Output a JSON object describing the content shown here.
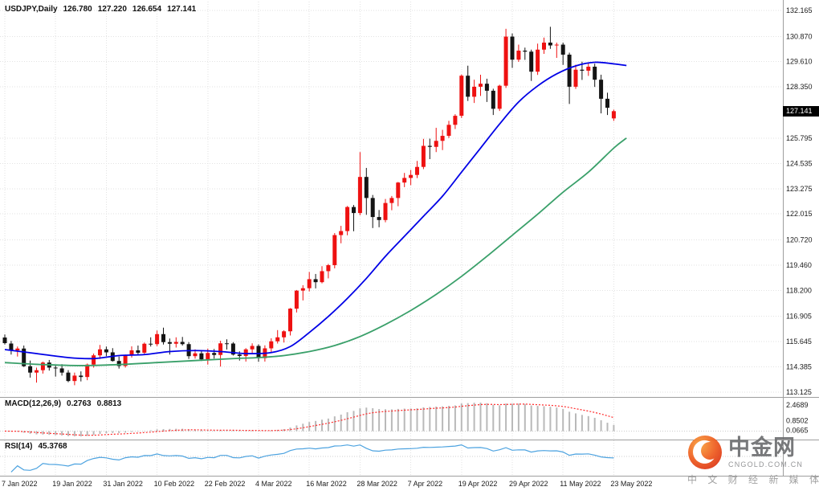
{
  "window": {
    "title_symbol": "USDJPY,Daily",
    "ohlc": {
      "open": "126.780",
      "high": "127.220",
      "low": "126.654",
      "close": "127.141"
    }
  },
  "watermark": {
    "name": "中金网",
    "domain": "CNGOLD.COM.CN",
    "tagline": "中 文 财 经 新 媒 体"
  },
  "chart_data": {
    "type": "candlestick",
    "title": "USDJPY,Daily 126.780 127.220 126.654 127.141",
    "symbol": "USDJPY",
    "timeframe": "Daily",
    "ylim": [
      113.125,
      132.165
    ],
    "grid": true,
    "up_color": "#ee1111",
    "down_color": "#141414",
    "last_price": {
      "value": 127.141,
      "text": "127.141"
    },
    "y_axis_labels": [
      {
        "value": 132.165,
        "text": "132.165"
      },
      {
        "value": 130.87,
        "text": "130.870"
      },
      {
        "value": 129.61,
        "text": "129.610"
      },
      {
        "value": 128.35,
        "text": "128.350"
      },
      {
        "value": 125.795,
        "text": "125.795"
      },
      {
        "value": 124.535,
        "text": "124.535"
      },
      {
        "value": 123.275,
        "text": "123.275"
      },
      {
        "value": 122.015,
        "text": "122.015"
      },
      {
        "value": 120.72,
        "text": "120.720"
      },
      {
        "value": 119.46,
        "text": "119.460"
      },
      {
        "value": 118.2,
        "text": "118.200"
      },
      {
        "value": 116.905,
        "text": "116.905"
      },
      {
        "value": 115.645,
        "text": "115.645"
      },
      {
        "value": 114.385,
        "text": "114.385"
      },
      {
        "value": 113.125,
        "text": "113.125"
      }
    ],
    "x_axis_labels": [
      {
        "index": 0,
        "text": "7 Jan 2022"
      },
      {
        "index": 8,
        "text": "19 Jan 2022"
      },
      {
        "index": 16,
        "text": "31 Jan 2022"
      },
      {
        "index": 24,
        "text": "10 Feb 2022"
      },
      {
        "index": 32,
        "text": "22 Feb 2022"
      },
      {
        "index": 40,
        "text": "4 Mar 2022"
      },
      {
        "index": 48,
        "text": "16 Mar 2022"
      },
      {
        "index": 56,
        "text": "28 Mar 2022"
      },
      {
        "index": 64,
        "text": "7 Apr 2022"
      },
      {
        "index": 72,
        "text": "19 Apr 2022"
      },
      {
        "index": 80,
        "text": "29 Apr 2022"
      },
      {
        "index": 88,
        "text": "11 May 2022"
      },
      {
        "index": 96,
        "text": "23 May 2022"
      }
    ],
    "candles": [
      [
        115.85,
        116.0,
        115.5,
        115.57
      ],
      [
        115.55,
        115.68,
        115.0,
        115.21
      ],
      [
        115.21,
        115.4,
        114.9,
        115.3
      ],
      [
        115.3,
        115.45,
        114.38,
        114.42
      ],
      [
        114.42,
        114.7,
        113.85,
        114.1
      ],
      [
        114.1,
        114.35,
        113.6,
        114.22
      ],
      [
        114.22,
        114.65,
        114.05,
        114.6
      ],
      [
        114.6,
        114.73,
        114.2,
        114.35
      ],
      [
        114.35,
        114.45,
        113.9,
        114.31
      ],
      [
        114.31,
        114.52,
        113.95,
        114.1
      ],
      [
        114.1,
        114.22,
        113.62,
        113.68
      ],
      [
        113.68,
        114.1,
        113.47,
        113.95
      ],
      [
        113.95,
        114.16,
        113.66,
        113.88
      ],
      [
        113.88,
        114.55,
        113.72,
        114.5
      ],
      [
        114.5,
        115.05,
        114.35,
        114.96
      ],
      [
        114.96,
        115.48,
        114.78,
        115.26
      ],
      [
        115.26,
        115.4,
        114.92,
        115.11
      ],
      [
        115.11,
        115.32,
        114.65,
        114.68
      ],
      [
        114.68,
        114.9,
        114.3,
        114.43
      ],
      [
        114.43,
        115.0,
        114.35,
        114.96
      ],
      [
        114.96,
        115.41,
        114.85,
        115.21
      ],
      [
        115.21,
        115.45,
        114.95,
        115.09
      ],
      [
        115.09,
        115.6,
        115.0,
        115.54
      ],
      [
        115.54,
        115.86,
        115.4,
        115.52
      ],
      [
        115.52,
        116.2,
        115.42,
        116.02
      ],
      [
        116.02,
        116.34,
        115.5,
        115.62
      ],
      [
        115.62,
        115.8,
        115.0,
        115.54
      ],
      [
        115.54,
        115.86,
        115.35,
        115.63
      ],
      [
        115.63,
        115.88,
        115.45,
        115.52
      ],
      [
        115.52,
        115.62,
        114.78,
        114.92
      ],
      [
        114.92,
        115.26,
        114.8,
        115.06
      ],
      [
        115.06,
        115.22,
        114.68,
        114.76
      ],
      [
        114.76,
        115.3,
        114.5,
        115.08
      ],
      [
        115.08,
        115.28,
        114.8,
        114.98
      ],
      [
        114.98,
        115.69,
        114.4,
        115.56
      ],
      [
        115.56,
        115.76,
        115.25,
        115.55
      ],
      [
        115.55,
        115.62,
        114.95,
        115.0
      ],
      [
        115.0,
        115.16,
        114.7,
        114.93
      ],
      [
        114.93,
        115.32,
        114.65,
        115.26
      ],
      [
        115.26,
        115.56,
        115.05,
        115.43
      ],
      [
        115.43,
        115.51,
        114.64,
        114.82
      ],
      [
        114.82,
        115.46,
        114.65,
        115.31
      ],
      [
        115.31,
        115.81,
        115.1,
        115.66
      ],
      [
        115.66,
        116.22,
        115.55,
        115.86
      ],
      [
        115.86,
        116.21,
        115.6,
        116.16
      ],
      [
        116.16,
        117.32,
        115.95,
        117.29
      ],
      [
        117.29,
        118.22,
        117.1,
        118.19
      ],
      [
        118.19,
        118.46,
        117.7,
        118.31
      ],
      [
        118.31,
        119.12,
        118.15,
        118.76
      ],
      [
        118.76,
        119.02,
        118.3,
        118.61
      ],
      [
        118.61,
        119.41,
        118.55,
        119.16
      ],
      [
        119.16,
        119.52,
        118.8,
        119.46
      ],
      [
        119.46,
        121.06,
        119.3,
        120.96
      ],
      [
        120.96,
        121.42,
        120.55,
        121.16
      ],
      [
        121.16,
        122.41,
        120.95,
        122.36
      ],
      [
        122.36,
        122.46,
        121.15,
        122.06
      ],
      [
        122.06,
        125.1,
        121.95,
        123.86
      ],
      [
        123.86,
        124.31,
        121.97,
        122.81
      ],
      [
        122.81,
        122.96,
        121.31,
        121.86
      ],
      [
        121.86,
        122.21,
        121.35,
        121.71
      ],
      [
        121.71,
        122.76,
        121.6,
        122.56
      ],
      [
        122.56,
        122.91,
        122.2,
        122.81
      ],
      [
        122.81,
        123.61,
        122.4,
        123.58
      ],
      [
        123.58,
        124.06,
        123.35,
        123.81
      ],
      [
        123.81,
        124.21,
        123.45,
        123.96
      ],
      [
        123.96,
        124.66,
        123.8,
        124.36
      ],
      [
        124.36,
        125.76,
        124.25,
        125.41
      ],
      [
        125.41,
        125.77,
        124.75,
        125.36
      ],
      [
        125.36,
        126.31,
        125.1,
        125.66
      ],
      [
        125.66,
        126.21,
        125.2,
        125.91
      ],
      [
        125.91,
        126.66,
        125.8,
        126.46
      ],
      [
        126.46,
        126.99,
        126.25,
        126.91
      ],
      [
        126.91,
        128.97,
        126.8,
        128.91
      ],
      [
        128.91,
        129.41,
        127.65,
        127.86
      ],
      [
        127.86,
        128.71,
        127.55,
        128.36
      ],
      [
        128.36,
        128.96,
        127.9,
        128.51
      ],
      [
        128.51,
        128.76,
        127.6,
        128.16
      ],
      [
        128.16,
        128.26,
        126.95,
        127.26
      ],
      [
        127.26,
        128.46,
        127.15,
        128.41
      ],
      [
        128.41,
        131.25,
        128.3,
        130.86
      ],
      [
        130.86,
        131.02,
        129.3,
        129.71
      ],
      [
        129.71,
        130.46,
        129.6,
        130.16
      ],
      [
        130.16,
        130.31,
        129.7,
        130.11
      ],
      [
        130.11,
        130.21,
        128.65,
        129.11
      ],
      [
        129.11,
        130.51,
        128.95,
        130.21
      ],
      [
        130.21,
        130.81,
        130.0,
        130.56
      ],
      [
        130.56,
        131.35,
        130.25,
        130.42
      ],
      [
        130.42,
        130.56,
        129.8,
        130.46
      ],
      [
        130.46,
        130.56,
        129.45,
        129.96
      ],
      [
        129.96,
        130.06,
        127.5,
        128.36
      ],
      [
        128.36,
        129.46,
        128.25,
        129.21
      ],
      [
        129.21,
        129.61,
        128.7,
        129.16
      ],
      [
        129.16,
        129.56,
        128.9,
        129.36
      ],
      [
        129.36,
        129.51,
        128.35,
        128.71
      ],
      [
        128.71,
        128.96,
        127.03,
        127.76
      ],
      [
        127.76,
        128.06,
        126.95,
        127.31
      ],
      [
        126.78,
        127.22,
        126.654,
        127.141
      ]
    ],
    "ma_fast": {
      "name": "fast-moving-average",
      "color": "#0000e6",
      "points": [
        [
          0,
          115.25
        ],
        [
          5,
          115.05
        ],
        [
          10,
          114.85
        ],
        [
          14,
          114.8
        ],
        [
          18,
          114.95
        ],
        [
          22,
          115.0
        ],
        [
          26,
          115.15
        ],
        [
          30,
          115.2
        ],
        [
          34,
          115.15
        ],
        [
          38,
          115.05
        ],
        [
          42,
          115.1
        ],
        [
          45,
          115.4
        ],
        [
          48,
          116.1
        ],
        [
          51,
          116.9
        ],
        [
          54,
          117.8
        ],
        [
          57,
          118.8
        ],
        [
          60,
          119.9
        ],
        [
          63,
          120.9
        ],
        [
          66,
          121.9
        ],
        [
          69,
          122.9
        ],
        [
          72,
          124.1
        ],
        [
          75,
          125.3
        ],
        [
          78,
          126.5
        ],
        [
          81,
          127.6
        ],
        [
          84,
          128.4
        ],
        [
          87,
          129.0
        ],
        [
          90,
          129.4
        ],
        [
          93,
          129.58
        ],
        [
          96,
          129.5
        ],
        [
          98,
          129.42
        ]
      ]
    },
    "ma_slow": {
      "name": "slow-moving-average",
      "color": "#3aa06a",
      "points": [
        [
          0,
          114.6
        ],
        [
          6,
          114.5
        ],
        [
          12,
          114.45
        ],
        [
          18,
          114.5
        ],
        [
          24,
          114.6
        ],
        [
          30,
          114.7
        ],
        [
          36,
          114.8
        ],
        [
          40,
          114.85
        ],
        [
          44,
          114.95
        ],
        [
          48,
          115.15
        ],
        [
          52,
          115.45
        ],
        [
          56,
          115.9
        ],
        [
          60,
          116.5
        ],
        [
          64,
          117.2
        ],
        [
          68,
          118.0
        ],
        [
          72,
          118.9
        ],
        [
          76,
          119.9
        ],
        [
          80,
          120.95
        ],
        [
          84,
          122.0
        ],
        [
          88,
          123.1
        ],
        [
          92,
          124.1
        ],
        [
          96,
          125.3
        ],
        [
          98,
          125.8
        ]
      ]
    },
    "macd": {
      "label": "MACD(12,26,9)",
      "main_value": "0.2763",
      "signal_value": "0.8813",
      "fast": 12,
      "slow": 26,
      "signal": 9,
      "hist_color": "#b9b9b9",
      "signal_color": "#ff2a2a",
      "scale_labels": [
        {
          "value": 2.4689,
          "text": "2.4689"
        },
        {
          "value": 0.8502,
          "text": "0.8502"
        },
        {
          "value": 0.0665,
          "text": "0.0665"
        }
      ]
    },
    "rsi": {
      "label": "RSI(14)",
      "value": "45.3768",
      "period": 14,
      "color": "#4da3e0",
      "mid_level": 50
    }
  }
}
